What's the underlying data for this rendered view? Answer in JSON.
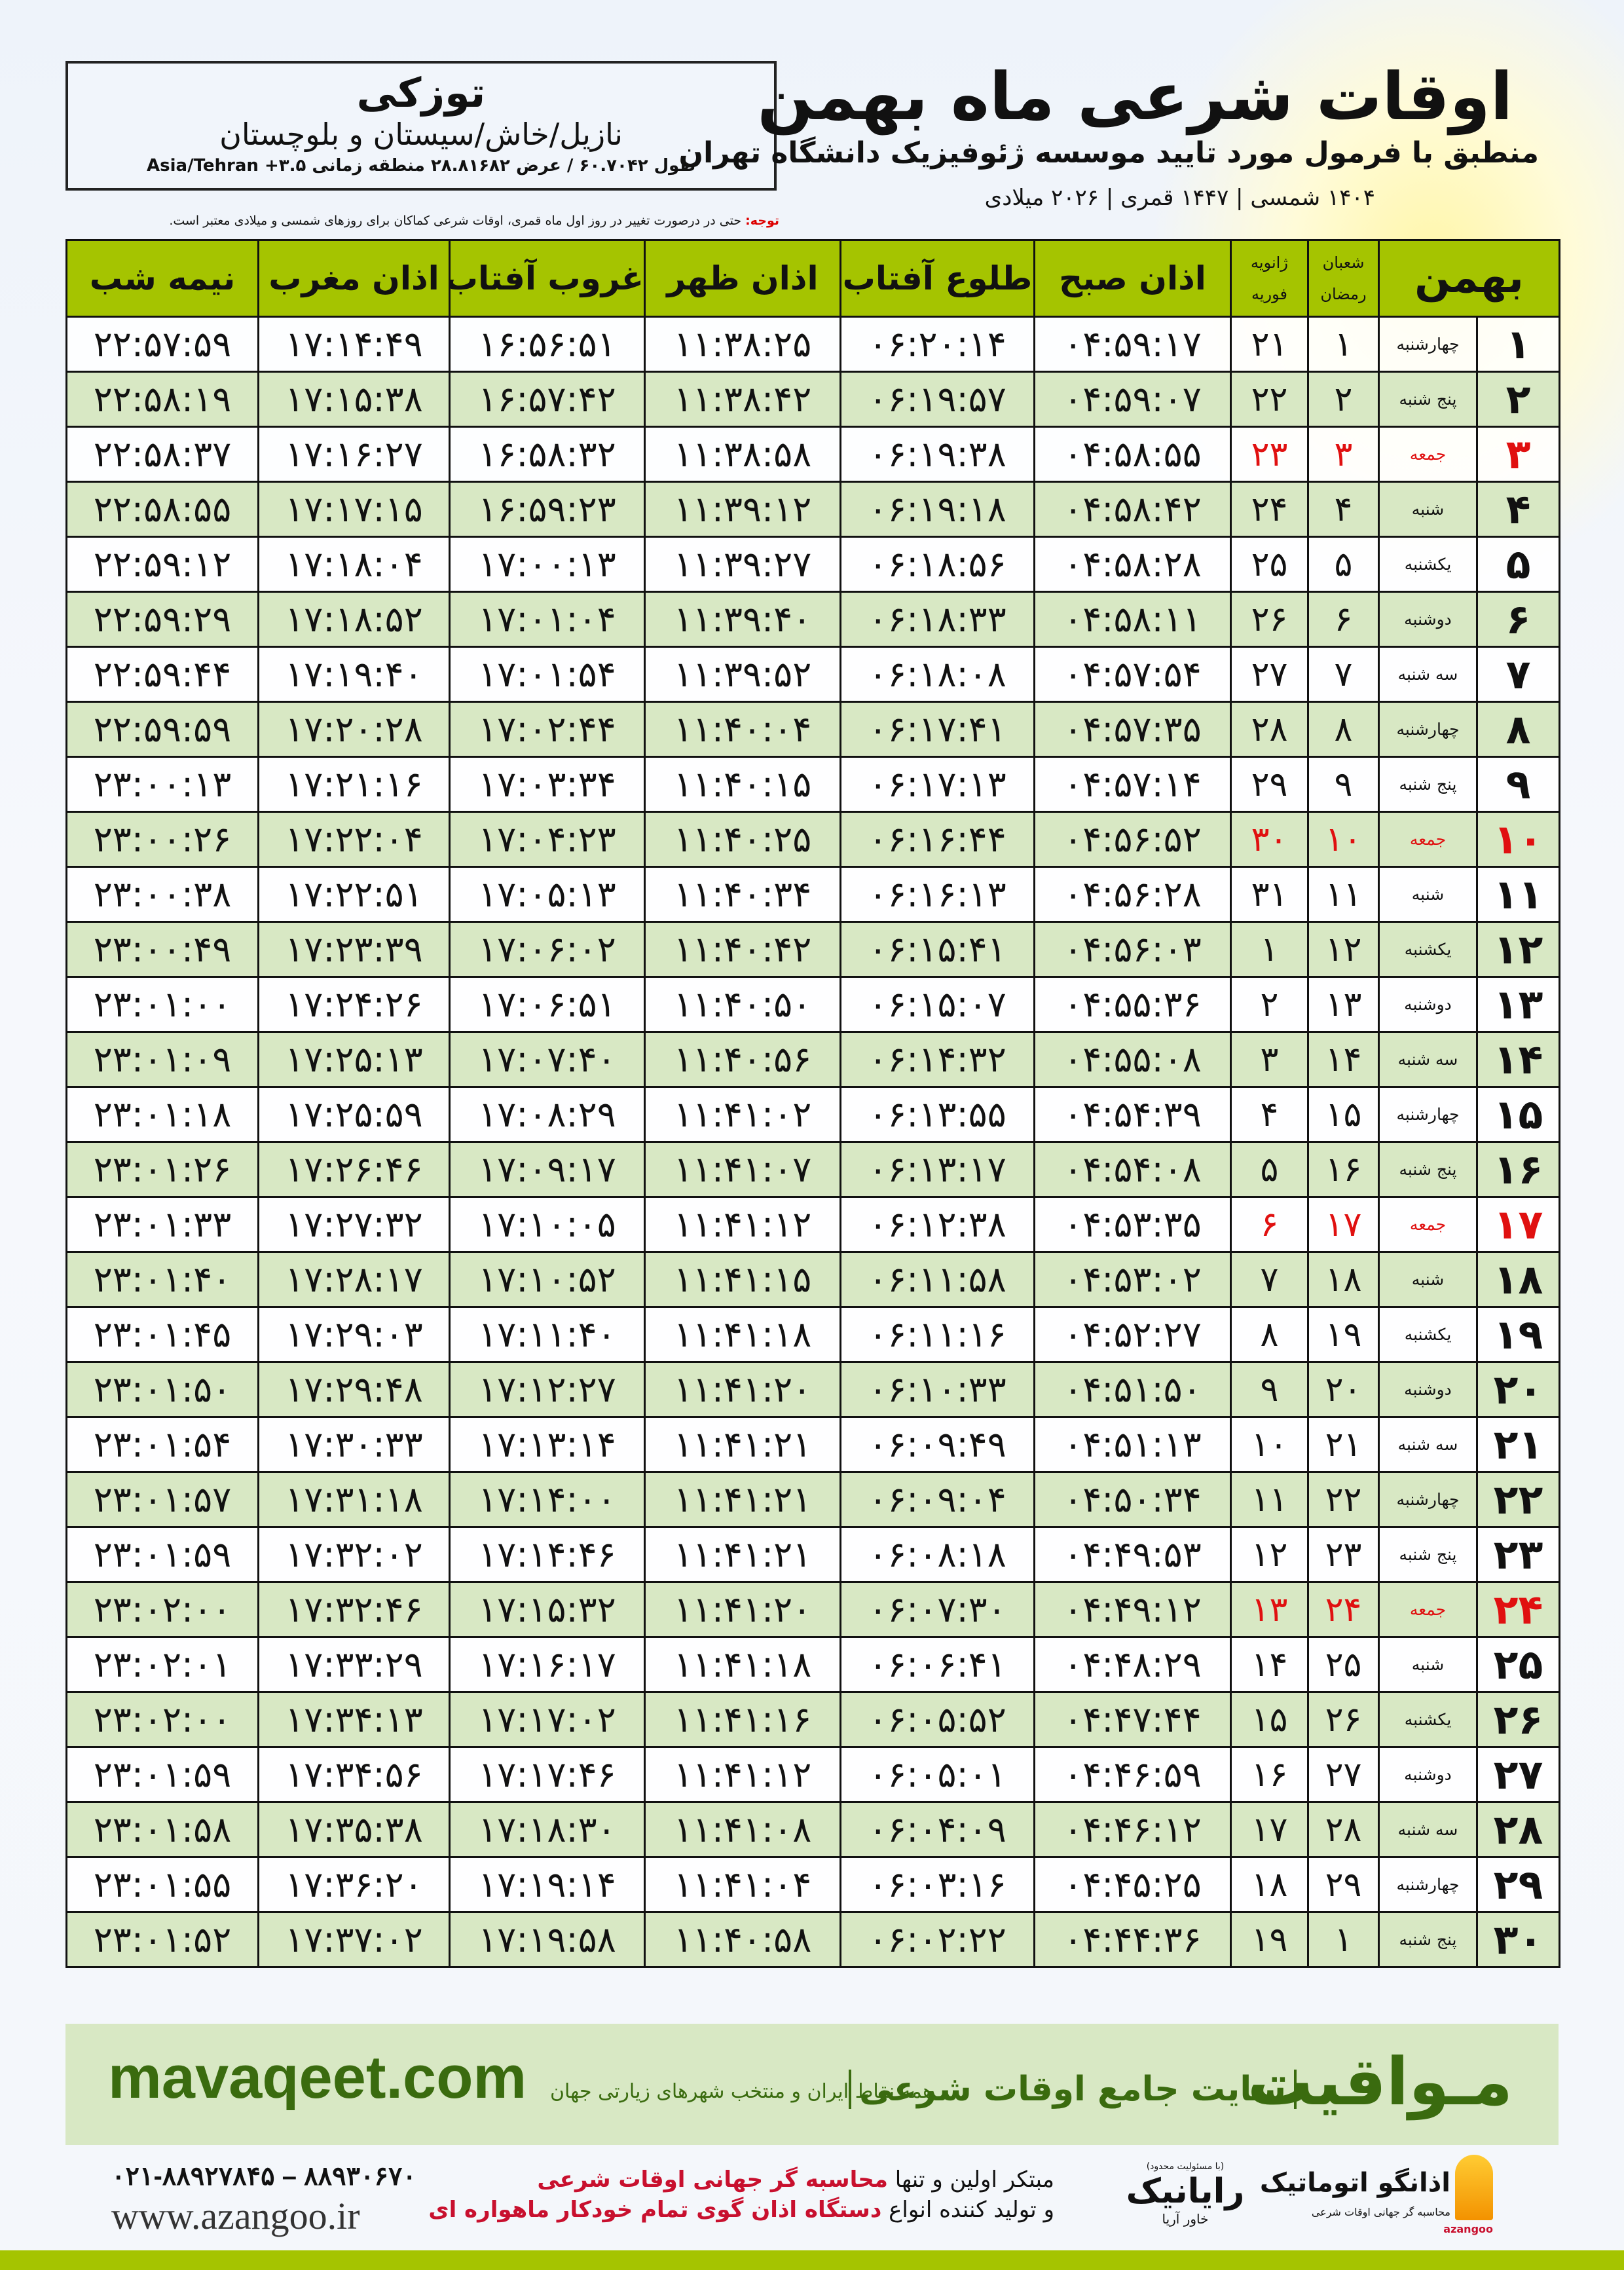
{
  "header": {
    "title": "اوقات شرعی ماه بهمن",
    "subtitle": "منطبق با فرمول مورد تایید موسسه ژئوفیزیک دانشگاه تهران",
    "years": "۱۴۰۴ شمسی | ۱۴۴۷ قمری | ۲۰۲۶ میلادی"
  },
  "location": {
    "city": "توزکی",
    "region": "نازیل/خاش/سیستان و بلوچستان",
    "coords": "طول ۶۰.۷۰۴۲ / عرض ۲۸.۸۱۶۸۲ منطقه زمانی ۳.۵+ Asia/Tehran"
  },
  "note": {
    "label": "توجه:",
    "text": " حتی در درصورت تغییر در روز اول ماه قمری، اوقات شرعی کماکان برای روزهای شمسی و میلادی معتبر است."
  },
  "table": {
    "headers": {
      "month": "بهمن",
      "hijri_top": "شعبان",
      "hijri_bottom": "رمضان",
      "greg_top": "ژانویه",
      "greg_bottom": "فوریه",
      "sobh": "اذان صبح",
      "tolu": "طلوع آفتاب",
      "zohr": "اذان ظهر",
      "ghorub": "غروب آفتاب",
      "maghrib": "اذان مغرب",
      "nime_shab": "نیمه شب"
    },
    "holiday_weekday": "جمعه",
    "holiday_color": "#e01010",
    "rows": [
      [
        "۱",
        "چهارشنبه",
        "۱",
        "۲۱",
        "۰۴:۵۹:۱۷",
        "۰۶:۲۰:۱۴",
        "۱۱:۳۸:۲۵",
        "۱۶:۵۶:۵۱",
        "۱۷:۱۴:۴۹",
        "۲۲:۵۷:۵۹"
      ],
      [
        "۲",
        "پنج شنبه",
        "۲",
        "۲۲",
        "۰۴:۵۹:۰۷",
        "۰۶:۱۹:۵۷",
        "۱۱:۳۸:۴۲",
        "۱۶:۵۷:۴۲",
        "۱۷:۱۵:۳۸",
        "۲۲:۵۸:۱۹"
      ],
      [
        "۳",
        "جمعه",
        "۳",
        "۲۳",
        "۰۴:۵۸:۵۵",
        "۰۶:۱۹:۳۸",
        "۱۱:۳۸:۵۸",
        "۱۶:۵۸:۳۲",
        "۱۷:۱۶:۲۷",
        "۲۲:۵۸:۳۷"
      ],
      [
        "۴",
        "شنبه",
        "۴",
        "۲۴",
        "۰۴:۵۸:۴۲",
        "۰۶:۱۹:۱۸",
        "۱۱:۳۹:۱۲",
        "۱۶:۵۹:۲۳",
        "۱۷:۱۷:۱۵",
        "۲۲:۵۸:۵۵"
      ],
      [
        "۵",
        "یکشنبه",
        "۵",
        "۲۵",
        "۰۴:۵۸:۲۸",
        "۰۶:۱۸:۵۶",
        "۱۱:۳۹:۲۷",
        "۱۷:۰۰:۱۳",
        "۱۷:۱۸:۰۴",
        "۲۲:۵۹:۱۲"
      ],
      [
        "۶",
        "دوشنبه",
        "۶",
        "۲۶",
        "۰۴:۵۸:۱۱",
        "۰۶:۱۸:۳۳",
        "۱۱:۳۹:۴۰",
        "۱۷:۰۱:۰۴",
        "۱۷:۱۸:۵۲",
        "۲۲:۵۹:۲۹"
      ],
      [
        "۷",
        "سه شنبه",
        "۷",
        "۲۷",
        "۰۴:۵۷:۵۴",
        "۰۶:۱۸:۰۸",
        "۱۱:۳۹:۵۲",
        "۱۷:۰۱:۵۴",
        "۱۷:۱۹:۴۰",
        "۲۲:۵۹:۴۴"
      ],
      [
        "۸",
        "چهارشنبه",
        "۸",
        "۲۸",
        "۰۴:۵۷:۳۵",
        "۰۶:۱۷:۴۱",
        "۱۱:۴۰:۰۴",
        "۱۷:۰۲:۴۴",
        "۱۷:۲۰:۲۸",
        "۲۲:۵۹:۵۹"
      ],
      [
        "۹",
        "پنج شنبه",
        "۹",
        "۲۹",
        "۰۴:۵۷:۱۴",
        "۰۶:۱۷:۱۳",
        "۱۱:۴۰:۱۵",
        "۱۷:۰۳:۳۴",
        "۱۷:۲۱:۱۶",
        "۲۳:۰۰:۱۳"
      ],
      [
        "۱۰",
        "جمعه",
        "۱۰",
        "۳۰",
        "۰۴:۵۶:۵۲",
        "۰۶:۱۶:۴۴",
        "۱۱:۴۰:۲۵",
        "۱۷:۰۴:۲۳",
        "۱۷:۲۲:۰۴",
        "۲۳:۰۰:۲۶"
      ],
      [
        "۱۱",
        "شنبه",
        "۱۱",
        "۳۱",
        "۰۴:۵۶:۲۸",
        "۰۶:۱۶:۱۳",
        "۱۱:۴۰:۳۴",
        "۱۷:۰۵:۱۳",
        "۱۷:۲۲:۵۱",
        "۲۳:۰۰:۳۸"
      ],
      [
        "۱۲",
        "یکشنبه",
        "۱۲",
        "۱",
        "۰۴:۵۶:۰۳",
        "۰۶:۱۵:۴۱",
        "۱۱:۴۰:۴۲",
        "۱۷:۰۶:۰۲",
        "۱۷:۲۳:۳۹",
        "۲۳:۰۰:۴۹"
      ],
      [
        "۱۳",
        "دوشنبه",
        "۱۳",
        "۲",
        "۰۴:۵۵:۳۶",
        "۰۶:۱۵:۰۷",
        "۱۱:۴۰:۵۰",
        "۱۷:۰۶:۵۱",
        "۱۷:۲۴:۲۶",
        "۲۳:۰۱:۰۰"
      ],
      [
        "۱۴",
        "سه شنبه",
        "۱۴",
        "۳",
        "۰۴:۵۵:۰۸",
        "۰۶:۱۴:۳۲",
        "۱۱:۴۰:۵۶",
        "۱۷:۰۷:۴۰",
        "۱۷:۲۵:۱۳",
        "۲۳:۰۱:۰۹"
      ],
      [
        "۱۵",
        "چهارشنبه",
        "۱۵",
        "۴",
        "۰۴:۵۴:۳۹",
        "۰۶:۱۳:۵۵",
        "۱۱:۴۱:۰۲",
        "۱۷:۰۸:۲۹",
        "۱۷:۲۵:۵۹",
        "۲۳:۰۱:۱۸"
      ],
      [
        "۱۶",
        "پنج شنبه",
        "۱۶",
        "۵",
        "۰۴:۵۴:۰۸",
        "۰۶:۱۳:۱۷",
        "۱۱:۴۱:۰۷",
        "۱۷:۰۹:۱۷",
        "۱۷:۲۶:۴۶",
        "۲۳:۰۱:۲۶"
      ],
      [
        "۱۷",
        "جمعه",
        "۱۷",
        "۶",
        "۰۴:۵۳:۳۵",
        "۰۶:۱۲:۳۸",
        "۱۱:۴۱:۱۲",
        "۱۷:۱۰:۰۵",
        "۱۷:۲۷:۳۲",
        "۲۳:۰۱:۳۳"
      ],
      [
        "۱۸",
        "شنبه",
        "۱۸",
        "۷",
        "۰۴:۵۳:۰۲",
        "۰۶:۱۱:۵۸",
        "۱۱:۴۱:۱۵",
        "۱۷:۱۰:۵۲",
        "۱۷:۲۸:۱۷",
        "۲۳:۰۱:۴۰"
      ],
      [
        "۱۹",
        "یکشنبه",
        "۱۹",
        "۸",
        "۰۴:۵۲:۲۷",
        "۰۶:۱۱:۱۶",
        "۱۱:۴۱:۱۸",
        "۱۷:۱۱:۴۰",
        "۱۷:۲۹:۰۳",
        "۲۳:۰۱:۴۵"
      ],
      [
        "۲۰",
        "دوشنبه",
        "۲۰",
        "۹",
        "۰۴:۵۱:۵۰",
        "۰۶:۱۰:۳۳",
        "۱۱:۴۱:۲۰",
        "۱۷:۱۲:۲۷",
        "۱۷:۲۹:۴۸",
        "۲۳:۰۱:۵۰"
      ],
      [
        "۲۱",
        "سه شنبه",
        "۲۱",
        "۱۰",
        "۰۴:۵۱:۱۳",
        "۰۶:۰۹:۴۹",
        "۱۱:۴۱:۲۱",
        "۱۷:۱۳:۱۴",
        "۱۷:۳۰:۳۳",
        "۲۳:۰۱:۵۴"
      ],
      [
        "۲۲",
        "چهارشنبه",
        "۲۲",
        "۱۱",
        "۰۴:۵۰:۳۴",
        "۰۶:۰۹:۰۴",
        "۱۱:۴۱:۲۱",
        "۱۷:۱۴:۰۰",
        "۱۷:۳۱:۱۸",
        "۲۳:۰۱:۵۷"
      ],
      [
        "۲۳",
        "پنج شنبه",
        "۲۳",
        "۱۲",
        "۰۴:۴۹:۵۳",
        "۰۶:۰۸:۱۸",
        "۱۱:۴۱:۲۱",
        "۱۷:۱۴:۴۶",
        "۱۷:۳۲:۰۲",
        "۲۳:۰۱:۵۹"
      ],
      [
        "۲۴",
        "جمعه",
        "۲۴",
        "۱۳",
        "۰۴:۴۹:۱۲",
        "۰۶:۰۷:۳۰",
        "۱۱:۴۱:۲۰",
        "۱۷:۱۵:۳۲",
        "۱۷:۳۲:۴۶",
        "۲۳:۰۲:۰۰"
      ],
      [
        "۲۵",
        "شنبه",
        "۲۵",
        "۱۴",
        "۰۴:۴۸:۲۹",
        "۰۶:۰۶:۴۱",
        "۱۱:۴۱:۱۸",
        "۱۷:۱۶:۱۷",
        "۱۷:۳۳:۲۹",
        "۲۳:۰۲:۰۱"
      ],
      [
        "۲۶",
        "یکشنبه",
        "۲۶",
        "۱۵",
        "۰۴:۴۷:۴۴",
        "۰۶:۰۵:۵۲",
        "۱۱:۴۱:۱۶",
        "۱۷:۱۷:۰۲",
        "۱۷:۳۴:۱۳",
        "۲۳:۰۲:۰۰"
      ],
      [
        "۲۷",
        "دوشنبه",
        "۲۷",
        "۱۶",
        "۰۴:۴۶:۵۹",
        "۰۶:۰۵:۰۱",
        "۱۱:۴۱:۱۲",
        "۱۷:۱۷:۴۶",
        "۱۷:۳۴:۵۶",
        "۲۳:۰۱:۵۹"
      ],
      [
        "۲۸",
        "سه شنبه",
        "۲۸",
        "۱۷",
        "۰۴:۴۶:۱۲",
        "۰۶:۰۴:۰۹",
        "۱۱:۴۱:۰۸",
        "۱۷:۱۸:۳۰",
        "۱۷:۳۵:۳۸",
        "۲۳:۰۱:۵۸"
      ],
      [
        "۲۹",
        "چهارشنبه",
        "۲۹",
        "۱۸",
        "۰۴:۴۵:۲۵",
        "۰۶:۰۳:۱۶",
        "۱۱:۴۱:۰۴",
        "۱۷:۱۹:۱۴",
        "۱۷:۳۶:۲۰",
        "۲۳:۰۱:۵۵"
      ],
      [
        "۳۰",
        "پنج شنبه",
        "۱",
        "۱۹",
        "۰۴:۴۴:۳۶",
        "۰۶:۰۲:۲۲",
        "۱۱:۴۰:۵۸",
        "۱۷:۱۹:۵۸",
        "۱۷:۳۷:۰۲",
        "۲۳:۰۱:۵۲"
      ]
    ]
  },
  "footer": {
    "brand": "مـواقیت",
    "tagline": "سایت جامع اوقات شرعی",
    "tagline2": "همه نقاط ایران و منتخب شهرهای زیارتی جهان",
    "site": "mavaqeet.com",
    "phone": "۰۲۱-۸۸۹۲۷۸۴۵ – ۸۸۹۳۰۶۷۰",
    "web": "www.azangoo.ir",
    "slogan_line1_a": "مبتکر اولین و تنها ",
    "slogan_line1_b": "محاسبه گر جهانی اوقات شرعی",
    "slogan_line2_a": "و تولید کننده انواع ",
    "slogan_line2_b": "دستگاه اذان گوی تمام خودکار ماهواره ای",
    "rayanik_note": "(با مسئولیت محدود)",
    "rayanik_name": "رایانیک",
    "rayanik_sub": "خاور آریا",
    "azangoo_name": "اذانگو اتوماتیک",
    "azangoo_sub": "محاسبه گر جهانی اوقات شرعی",
    "azangoo_latin": "azangoo",
    "green": "#a5c400",
    "dark_green": "#3a6b0f"
  }
}
